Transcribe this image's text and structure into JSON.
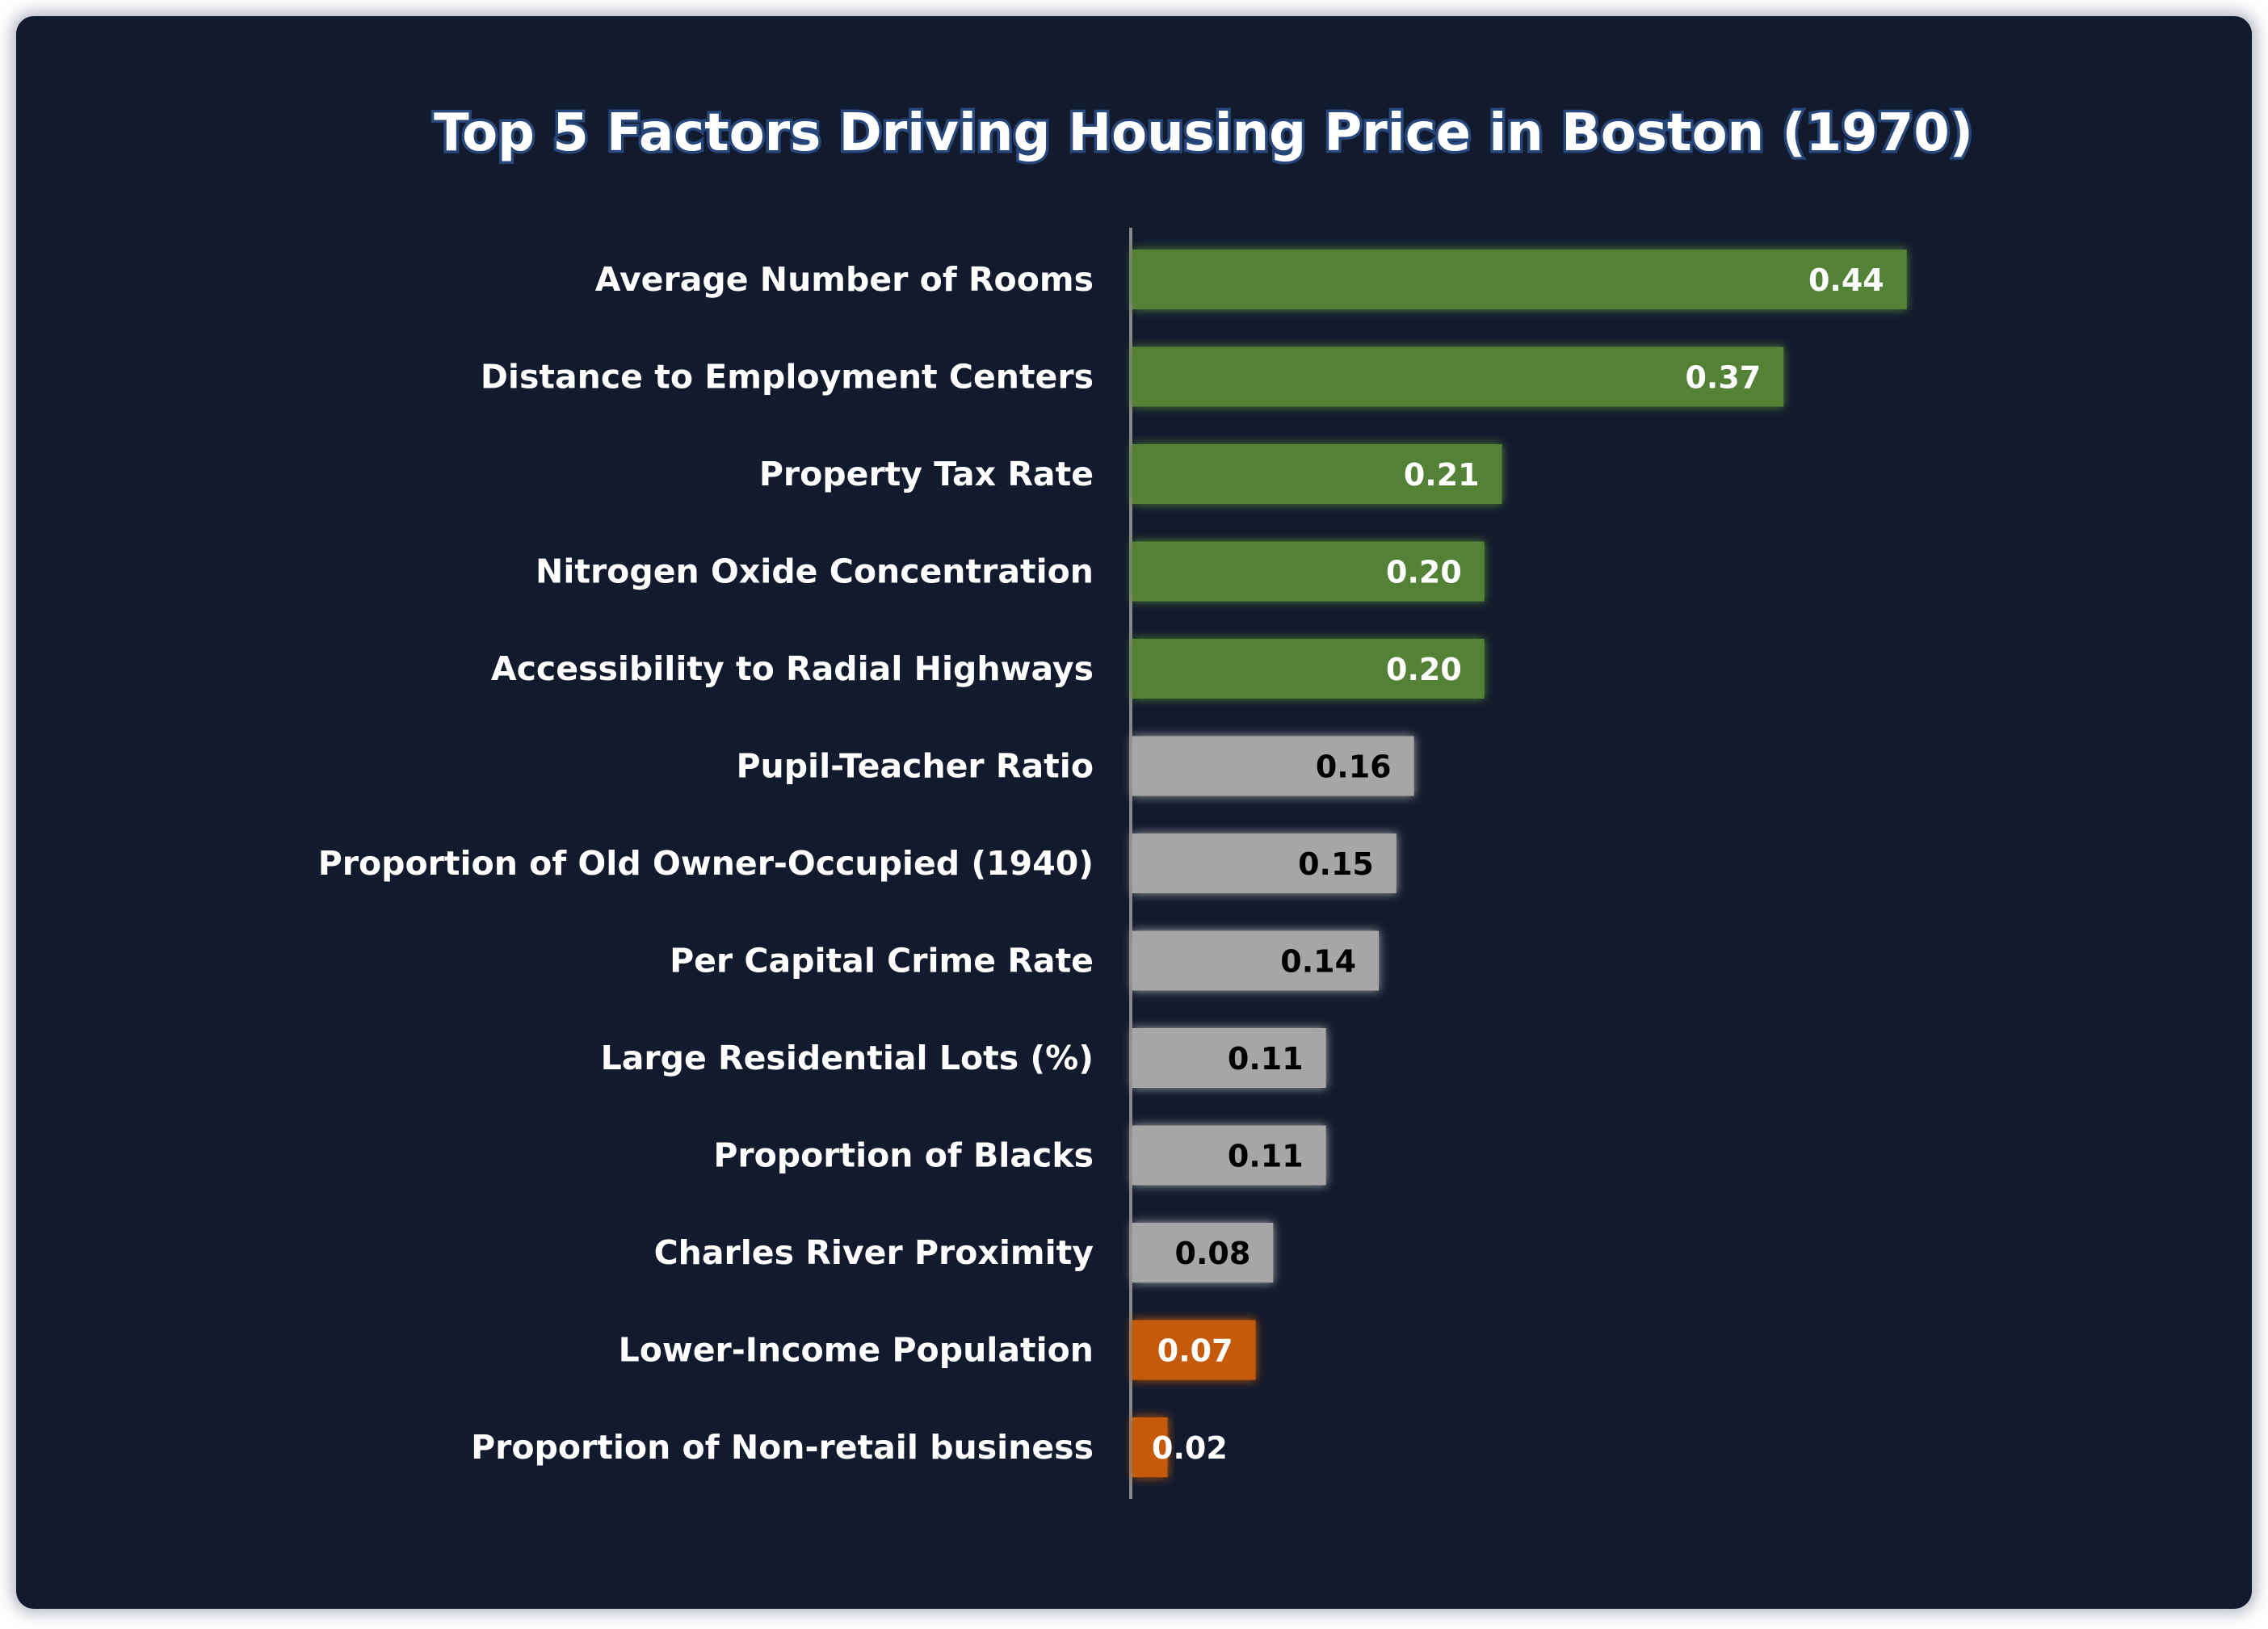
{
  "chart_data": {
    "type": "bar",
    "orientation": "horizontal",
    "title": "Top 5 Factors Driving Housing Price in Boston (1970)",
    "xlabel": "",
    "ylabel": "",
    "grid": false,
    "xlim": [
      0,
      0.46
    ],
    "categories": [
      "Average Number of Rooms",
      "Distance to Employment Centers",
      "Property Tax Rate",
      "Nitrogen Oxide Concentration",
      "Accessibility to Radial Highways",
      "Pupil-Teacher Ratio",
      "Proportion of Old Owner-Occupied (1940)",
      "Per Capital Crime Rate",
      "Large Residential Lots (%)",
      "Proportion of Blacks",
      "Charles River Proximity",
      "Lower-Income Population",
      "Proportion of Non-retail business"
    ],
    "values": [
      0.44,
      0.37,
      0.21,
      0.2,
      0.2,
      0.16,
      0.15,
      0.14,
      0.11,
      0.11,
      0.08,
      0.07,
      0.02
    ],
    "value_labels": [
      "0.44",
      "0.37",
      "0.21",
      "0.20",
      "0.20",
      "0.16",
      "0.15",
      "0.14",
      "0.11",
      "0.11",
      "0.08",
      "0.07",
      "0.02"
    ],
    "groups": [
      "top",
      "top",
      "top",
      "top",
      "top",
      "mid",
      "mid",
      "mid",
      "mid",
      "mid",
      "mid",
      "low",
      "low"
    ]
  },
  "colors": {
    "background": "#121a2d",
    "top": "#538135",
    "mid": "#a6a6a6",
    "low": "#c55a11",
    "axis": "#888888",
    "label_on_top": "#ffffff",
    "label_on_mid": "#000000",
    "label_on_low": "#ffffff"
  }
}
